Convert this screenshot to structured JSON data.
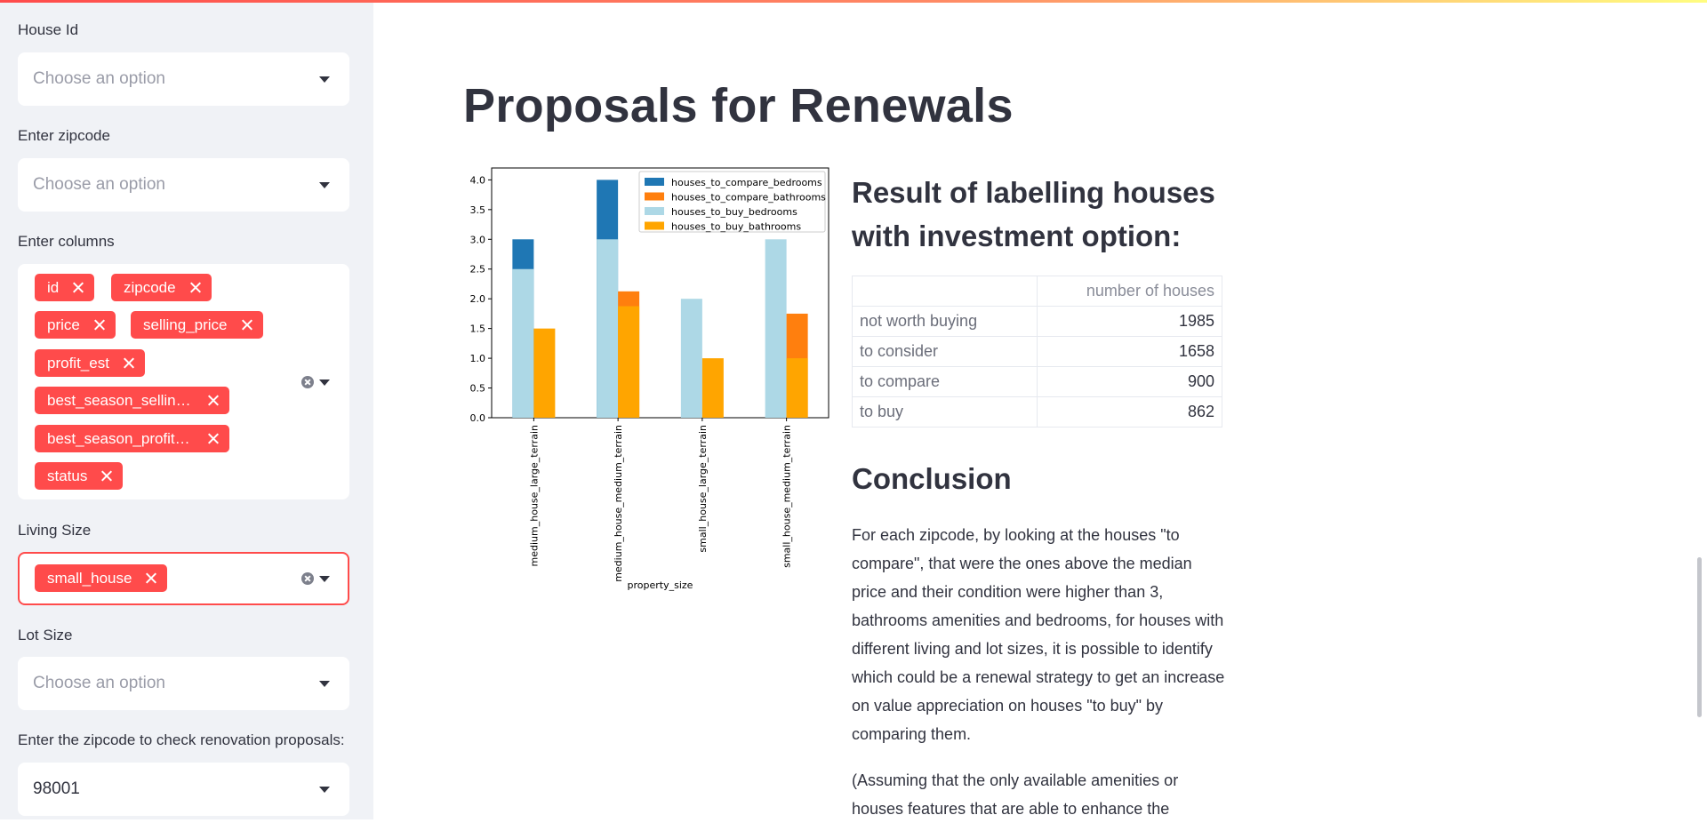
{
  "sidebar": {
    "house_id": {
      "label": "House Id",
      "placeholder": "Choose an option"
    },
    "zipcode": {
      "label": "Enter zipcode",
      "placeholder": "Choose an option"
    },
    "columns": {
      "label": "Enter columns",
      "tags": [
        "id",
        "zipcode",
        "price",
        "selling_price",
        "profit_est",
        "best_season_sellin…",
        "best_season_profit…",
        "status"
      ]
    },
    "living_size": {
      "label": "Living Size",
      "tags": [
        "small_house"
      ]
    },
    "lot_size": {
      "label": "Lot Size",
      "placeholder": "Choose an option"
    },
    "renovation_zipcode": {
      "label": "Enter the zipcode to check renovation proposals:",
      "value": "98001"
    }
  },
  "main": {
    "title": "Proposals for Renewals",
    "result_heading": "Result of labelling houses with investment option:",
    "table": {
      "header": "number of houses",
      "rows": [
        {
          "label": "not worth buying",
          "value": "1985"
        },
        {
          "label": "to consider",
          "value": "1658"
        },
        {
          "label": "to compare",
          "value": "900"
        },
        {
          "label": "to buy",
          "value": "862"
        }
      ]
    },
    "conclusion_heading": "Conclusion",
    "conclusion_text": "For each zipcode, by looking at the houses \"to compare\", that were the ones above the median price and their condition were higher than 3, bathrooms amenities and bedrooms, for houses with different living and lot sizes, it is possible to identify which could be a renewal strategy to get an increase on value appreciation on houses \"to buy\" by comparing them.",
    "conclusion_text_2": "(Assuming that the only available amenities or houses features that are able to enhance the"
  },
  "colors": {
    "accent": "#ff4b4b",
    "compare_bedrooms": "#1f77b4",
    "compare_bathrooms": "#ff7f0e",
    "buy_bedrooms": "#add8e6",
    "buy_bathrooms": "#ffa500"
  },
  "chart_data": {
    "type": "bar",
    "xlabel": "property_size",
    "ylabel": "",
    "ylim": [
      0,
      4.2
    ],
    "yticks": [
      "0.0",
      "0.5",
      "1.0",
      "1.5",
      "2.0",
      "2.5",
      "3.0",
      "3.5",
      "4.0"
    ],
    "categories": [
      "medium_house_large_terrain",
      "medium_house_medium_terrain",
      "small_house_large_terrain",
      "small_house_medium_terrain"
    ],
    "series": [
      {
        "name": "houses_to_compare_bedrooms",
        "values": [
          3,
          4,
          null,
          null
        ],
        "color": "#1f77b4"
      },
      {
        "name": "houses_to_compare_bathrooms",
        "values": [
          null,
          2.125,
          null,
          1.75
        ],
        "color": "#ff7f0e"
      },
      {
        "name": "houses_to_buy_bedrooms",
        "values": [
          2.5,
          3,
          2,
          3
        ],
        "color": "#add8e6"
      },
      {
        "name": "houses_to_buy_bathrooms",
        "values": [
          1.5,
          1.875,
          1,
          1
        ],
        "color": "#ffa500"
      }
    ],
    "legend": "top-right"
  }
}
